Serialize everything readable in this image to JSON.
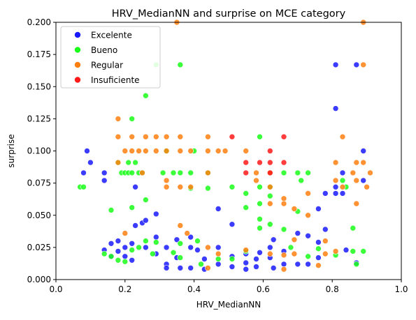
{
  "chart_data": {
    "type": "scatter",
    "title": "HRV_MedianNN and surprise on MCE category",
    "xlabel": "HRV_MedianNN",
    "ylabel": "surprise",
    "xlim": [
      0.0,
      1.0
    ],
    "ylim": [
      0.0,
      0.2
    ],
    "x_ticks": [
      "0.0",
      "0.2",
      "0.4",
      "0.6",
      "0.8",
      "1.0"
    ],
    "y_ticks": [
      "0.000",
      "0.025",
      "0.050",
      "0.075",
      "0.100",
      "0.125",
      "0.150",
      "0.175",
      "0.200"
    ],
    "legend_position": "top-left",
    "grid": false,
    "series": [
      {
        "name": "Excelente",
        "color": "#1a1aff",
        "points": [
          [
            0.08,
            0.083
          ],
          [
            0.09,
            0.1
          ],
          [
            0.1,
            0.091
          ],
          [
            0.14,
            0.083
          ],
          [
            0.14,
            0.077
          ],
          [
            0.14,
            0.023
          ],
          [
            0.16,
            0.028
          ],
          [
            0.16,
            0.018
          ],
          [
            0.18,
            0.03
          ],
          [
            0.18,
            0.022
          ],
          [
            0.2,
            0.025
          ],
          [
            0.2,
            0.018
          ],
          [
            0.22,
            0.028
          ],
          [
            0.22,
            0.015
          ],
          [
            0.23,
            0.072
          ],
          [
            0.23,
            0.042
          ],
          [
            0.25,
            0.044
          ],
          [
            0.26,
            0.046
          ],
          [
            0.26,
            0.025
          ],
          [
            0.29,
            0.051
          ],
          [
            0.29,
            0.033
          ],
          [
            0.29,
            0.02
          ],
          [
            0.32,
            0.025
          ],
          [
            0.32,
            0.012
          ],
          [
            0.32,
            0.009
          ],
          [
            0.35,
            0.031
          ],
          [
            0.35,
            0.017
          ],
          [
            0.36,
            0.009
          ],
          [
            0.39,
            0.033
          ],
          [
            0.39,
            0.025
          ],
          [
            0.39,
            0.009
          ],
          [
            0.41,
            0.023
          ],
          [
            0.43,
            0.016
          ],
          [
            0.43,
            0.008
          ],
          [
            0.47,
            0.055
          ],
          [
            0.47,
            0.025
          ],
          [
            0.47,
            0.012
          ],
          [
            0.51,
            0.043
          ],
          [
            0.51,
            0.018
          ],
          [
            0.51,
            0.01
          ],
          [
            0.55,
            0.02
          ],
          [
            0.55,
            0.013
          ],
          [
            0.55,
            0.008
          ],
          [
            0.58,
            0.016
          ],
          [
            0.58,
            0.01
          ],
          [
            0.59,
            0.021
          ],
          [
            0.62,
            0.025
          ],
          [
            0.62,
            0.017
          ],
          [
            0.63,
            0.031
          ],
          [
            0.63,
            0.009
          ],
          [
            0.66,
            0.022
          ],
          [
            0.66,
            0.012
          ],
          [
            0.7,
            0.036
          ],
          [
            0.7,
            0.012
          ],
          [
            0.73,
            0.034
          ],
          [
            0.73,
            0.012
          ],
          [
            0.76,
            0.055
          ],
          [
            0.76,
            0.029
          ],
          [
            0.76,
            0.017
          ],
          [
            0.78,
            0.039
          ],
          [
            0.78,
            0.067
          ],
          [
            0.81,
            0.167
          ],
          [
            0.81,
            0.133
          ],
          [
            0.81,
            0.072
          ],
          [
            0.81,
            0.067
          ],
          [
            0.83,
            0.083
          ],
          [
            0.83,
            0.067
          ],
          [
            0.84,
            0.023
          ],
          [
            0.87,
            0.167
          ],
          [
            0.87,
            0.013
          ],
          [
            0.89,
            0.1
          ],
          [
            0.89,
            0.077
          ]
        ]
      },
      {
        "name": "Bueno",
        "color": "#1aff1a",
        "points": [
          [
            0.07,
            0.072
          ],
          [
            0.08,
            0.072
          ],
          [
            0.14,
            0.02
          ],
          [
            0.16,
            0.054
          ],
          [
            0.16,
            0.018
          ],
          [
            0.18,
            0.091
          ],
          [
            0.18,
            0.015
          ],
          [
            0.19,
            0.083
          ],
          [
            0.2,
            0.083
          ],
          [
            0.2,
            0.014
          ],
          [
            0.21,
            0.091
          ],
          [
            0.21,
            0.083
          ],
          [
            0.22,
            0.125
          ],
          [
            0.22,
            0.083
          ],
          [
            0.22,
            0.056
          ],
          [
            0.22,
            0.023
          ],
          [
            0.23,
            0.091
          ],
          [
            0.24,
            0.083
          ],
          [
            0.24,
            0.025
          ],
          [
            0.25,
            0.083
          ],
          [
            0.26,
            0.143
          ],
          [
            0.26,
            0.062
          ],
          [
            0.26,
            0.03
          ],
          [
            0.28,
            0.02
          ],
          [
            0.29,
            0.167
          ],
          [
            0.29,
            0.029
          ],
          [
            0.31,
            0.083
          ],
          [
            0.32,
            0.1
          ],
          [
            0.34,
            0.083
          ],
          [
            0.34,
            0.021
          ],
          [
            0.36,
            0.167
          ],
          [
            0.36,
            0.083
          ],
          [
            0.36,
            0.028
          ],
          [
            0.36,
            0.017
          ],
          [
            0.39,
            0.083
          ],
          [
            0.39,
            0.071
          ],
          [
            0.4,
            0.1
          ],
          [
            0.41,
            0.03
          ],
          [
            0.42,
            0.012
          ],
          [
            0.44,
            0.083
          ],
          [
            0.44,
            0.071
          ],
          [
            0.47,
            0.016
          ],
          [
            0.51,
            0.072
          ],
          [
            0.51,
            0.016
          ],
          [
            0.55,
            0.067
          ],
          [
            0.55,
            0.056
          ],
          [
            0.55,
            0.022
          ],
          [
            0.59,
            0.111
          ],
          [
            0.59,
            0.072
          ],
          [
            0.59,
            0.059
          ],
          [
            0.59,
            0.047
          ],
          [
            0.59,
            0.04
          ],
          [
            0.62,
            0.083
          ],
          [
            0.62,
            0.072
          ],
          [
            0.62,
            0.065
          ],
          [
            0.62,
            0.043
          ],
          [
            0.66,
            0.083
          ],
          [
            0.66,
            0.039
          ],
          [
            0.68,
            0.025
          ],
          [
            0.7,
            0.083
          ],
          [
            0.7,
            0.053
          ],
          [
            0.71,
            0.077
          ],
          [
            0.73,
            0.083
          ],
          [
            0.73,
            0.018
          ],
          [
            0.76,
            0.024
          ],
          [
            0.81,
            0.019
          ],
          [
            0.83,
            0.077
          ],
          [
            0.84,
            0.072
          ],
          [
            0.86,
            0.04
          ],
          [
            0.86,
            0.022
          ],
          [
            0.87,
            0.012
          ],
          [
            0.89,
            0.022
          ]
        ]
      },
      {
        "name": "Regular",
        "color": "#ff7f0e",
        "points": [
          [
            0.18,
            0.125
          ],
          [
            0.18,
            0.111
          ],
          [
            0.18,
            0.091
          ],
          [
            0.2,
            0.1
          ],
          [
            0.2,
            0.036
          ],
          [
            0.22,
            0.111
          ],
          [
            0.22,
            0.1
          ],
          [
            0.24,
            0.1
          ],
          [
            0.25,
            0.083
          ],
          [
            0.26,
            0.111
          ],
          [
            0.26,
            0.1
          ],
          [
            0.29,
            0.111
          ],
          [
            0.29,
            0.1
          ],
          [
            0.32,
            0.111
          ],
          [
            0.32,
            0.1
          ],
          [
            0.32,
            0.077
          ],
          [
            0.32,
            0.072
          ],
          [
            0.35,
            0.2
          ],
          [
            0.36,
            0.111
          ],
          [
            0.36,
            0.1
          ],
          [
            0.36,
            0.072
          ],
          [
            0.36,
            0.042
          ],
          [
            0.38,
            0.036
          ],
          [
            0.39,
            0.1
          ],
          [
            0.39,
            0.072
          ],
          [
            0.44,
            0.111
          ],
          [
            0.44,
            0.1
          ],
          [
            0.44,
            0.083
          ],
          [
            0.44,
            0.025
          ],
          [
            0.44,
            0.009
          ],
          [
            0.47,
            0.1
          ],
          [
            0.47,
            0.02
          ],
          [
            0.49,
            0.1
          ],
          [
            0.55,
            0.1
          ],
          [
            0.55,
            0.023
          ],
          [
            0.58,
            0.083
          ],
          [
            0.58,
            0.077
          ],
          [
            0.62,
            0.083
          ],
          [
            0.62,
            0.072
          ],
          [
            0.62,
            0.059
          ],
          [
            0.62,
            0.02
          ],
          [
            0.66,
            0.063
          ],
          [
            0.66,
            0.059
          ],
          [
            0.66,
            0.019
          ],
          [
            0.66,
            0.008
          ],
          [
            0.69,
            0.055
          ],
          [
            0.69,
            0.031
          ],
          [
            0.69,
            0.02
          ],
          [
            0.73,
            0.067
          ],
          [
            0.73,
            0.05
          ],
          [
            0.76,
            0.011
          ],
          [
            0.78,
            0.03
          ],
          [
            0.78,
            0.02
          ],
          [
            0.81,
            0.091
          ],
          [
            0.81,
            0.077
          ],
          [
            0.81,
            0.022
          ],
          [
            0.83,
            0.111
          ],
          [
            0.83,
            0.072
          ],
          [
            0.86,
            0.083
          ],
          [
            0.87,
            0.091
          ],
          [
            0.87,
            0.077
          ],
          [
            0.87,
            0.059
          ],
          [
            0.89,
            0.2
          ],
          [
            0.89,
            0.167
          ],
          [
            0.89,
            0.091
          ],
          [
            0.9,
            0.072
          ],
          [
            0.91,
            0.083
          ]
        ]
      },
      {
        "name": "Insuficiente",
        "color": "#ff1a1a",
        "points": [
          [
            0.51,
            0.111
          ],
          [
            0.55,
            0.091
          ],
          [
            0.55,
            0.083
          ],
          [
            0.59,
            0.091
          ],
          [
            0.62,
            0.1
          ],
          [
            0.62,
            0.091
          ],
          [
            0.62,
            0.083
          ],
          [
            0.66,
            0.111
          ],
          [
            0.66,
            0.091
          ]
        ]
      }
    ]
  }
}
